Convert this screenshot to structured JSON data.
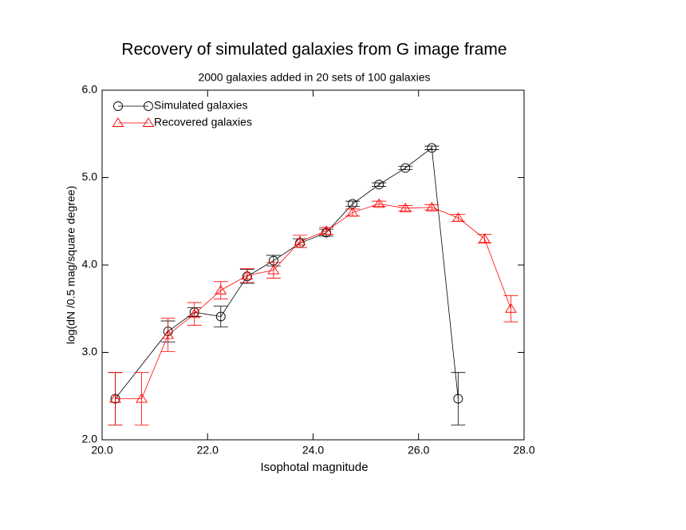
{
  "chart_data": {
    "type": "line",
    "title": "Recovery of simulated galaxies from G image frame",
    "subtitle": "2000 galaxies added in 20 sets of 100 galaxies",
    "x_label": "Isophotal magnitude",
    "y_label": "log(dN /0.5 mag/square degree)",
    "xlim": [
      20,
      28
    ],
    "ylim": [
      2,
      6
    ],
    "xticks": [
      {
        "value": 20,
        "label": "20.0"
      },
      {
        "value": 22,
        "label": "22.0"
      },
      {
        "value": 24,
        "label": "24.0"
      },
      {
        "value": 26,
        "label": "26.0"
      },
      {
        "value": 28,
        "label": "28.0"
      }
    ],
    "yticks": [
      {
        "value": 2,
        "label": "2.0"
      },
      {
        "value": 3,
        "label": "3.0"
      },
      {
        "value": 4,
        "label": "4.0"
      },
      {
        "value": 5,
        "label": "5.0"
      },
      {
        "value": 6,
        "label": "6.0"
      }
    ],
    "grid": false,
    "legend": "upper-left",
    "series": [
      {
        "name": "Simulated galaxies",
        "color": "#000000",
        "marker": "circle",
        "x": [
          20.25,
          21.25,
          21.75,
          22.25,
          22.75,
          23.25,
          23.75,
          24.25,
          24.75,
          25.25,
          25.75,
          26.25,
          26.75
        ],
        "values": [
          2.47,
          3.24,
          3.46,
          3.41,
          3.87,
          4.05,
          4.25,
          4.37,
          4.7,
          4.92,
          5.11,
          5.34,
          2.47
        ],
        "errors": [
          0.3,
          0.12,
          0.05,
          0.12,
          0.08,
          0.06,
          0.05,
          0.04,
          0.03,
          0.02,
          0.02,
          0.02,
          0.3
        ]
      },
      {
        "name": "Recovered galaxies",
        "color": "#ff0000",
        "marker": "triangle",
        "x": [
          20.25,
          20.75,
          21.25,
          21.75,
          22.25,
          22.75,
          23.25,
          23.75,
          24.25,
          24.75,
          25.25,
          25.75,
          26.25,
          26.75,
          27.25,
          27.75
        ],
        "values": [
          2.47,
          2.47,
          3.2,
          3.44,
          3.71,
          3.88,
          3.94,
          4.27,
          4.39,
          4.6,
          4.7,
          4.65,
          4.66,
          4.54,
          4.3,
          3.5
        ],
        "errors": [
          0.3,
          0.3,
          0.19,
          0.13,
          0.1,
          0.08,
          0.09,
          0.07,
          0.04,
          0.04,
          0.03,
          0.03,
          0.03,
          0.04,
          0.05,
          0.15
        ]
      }
    ]
  }
}
